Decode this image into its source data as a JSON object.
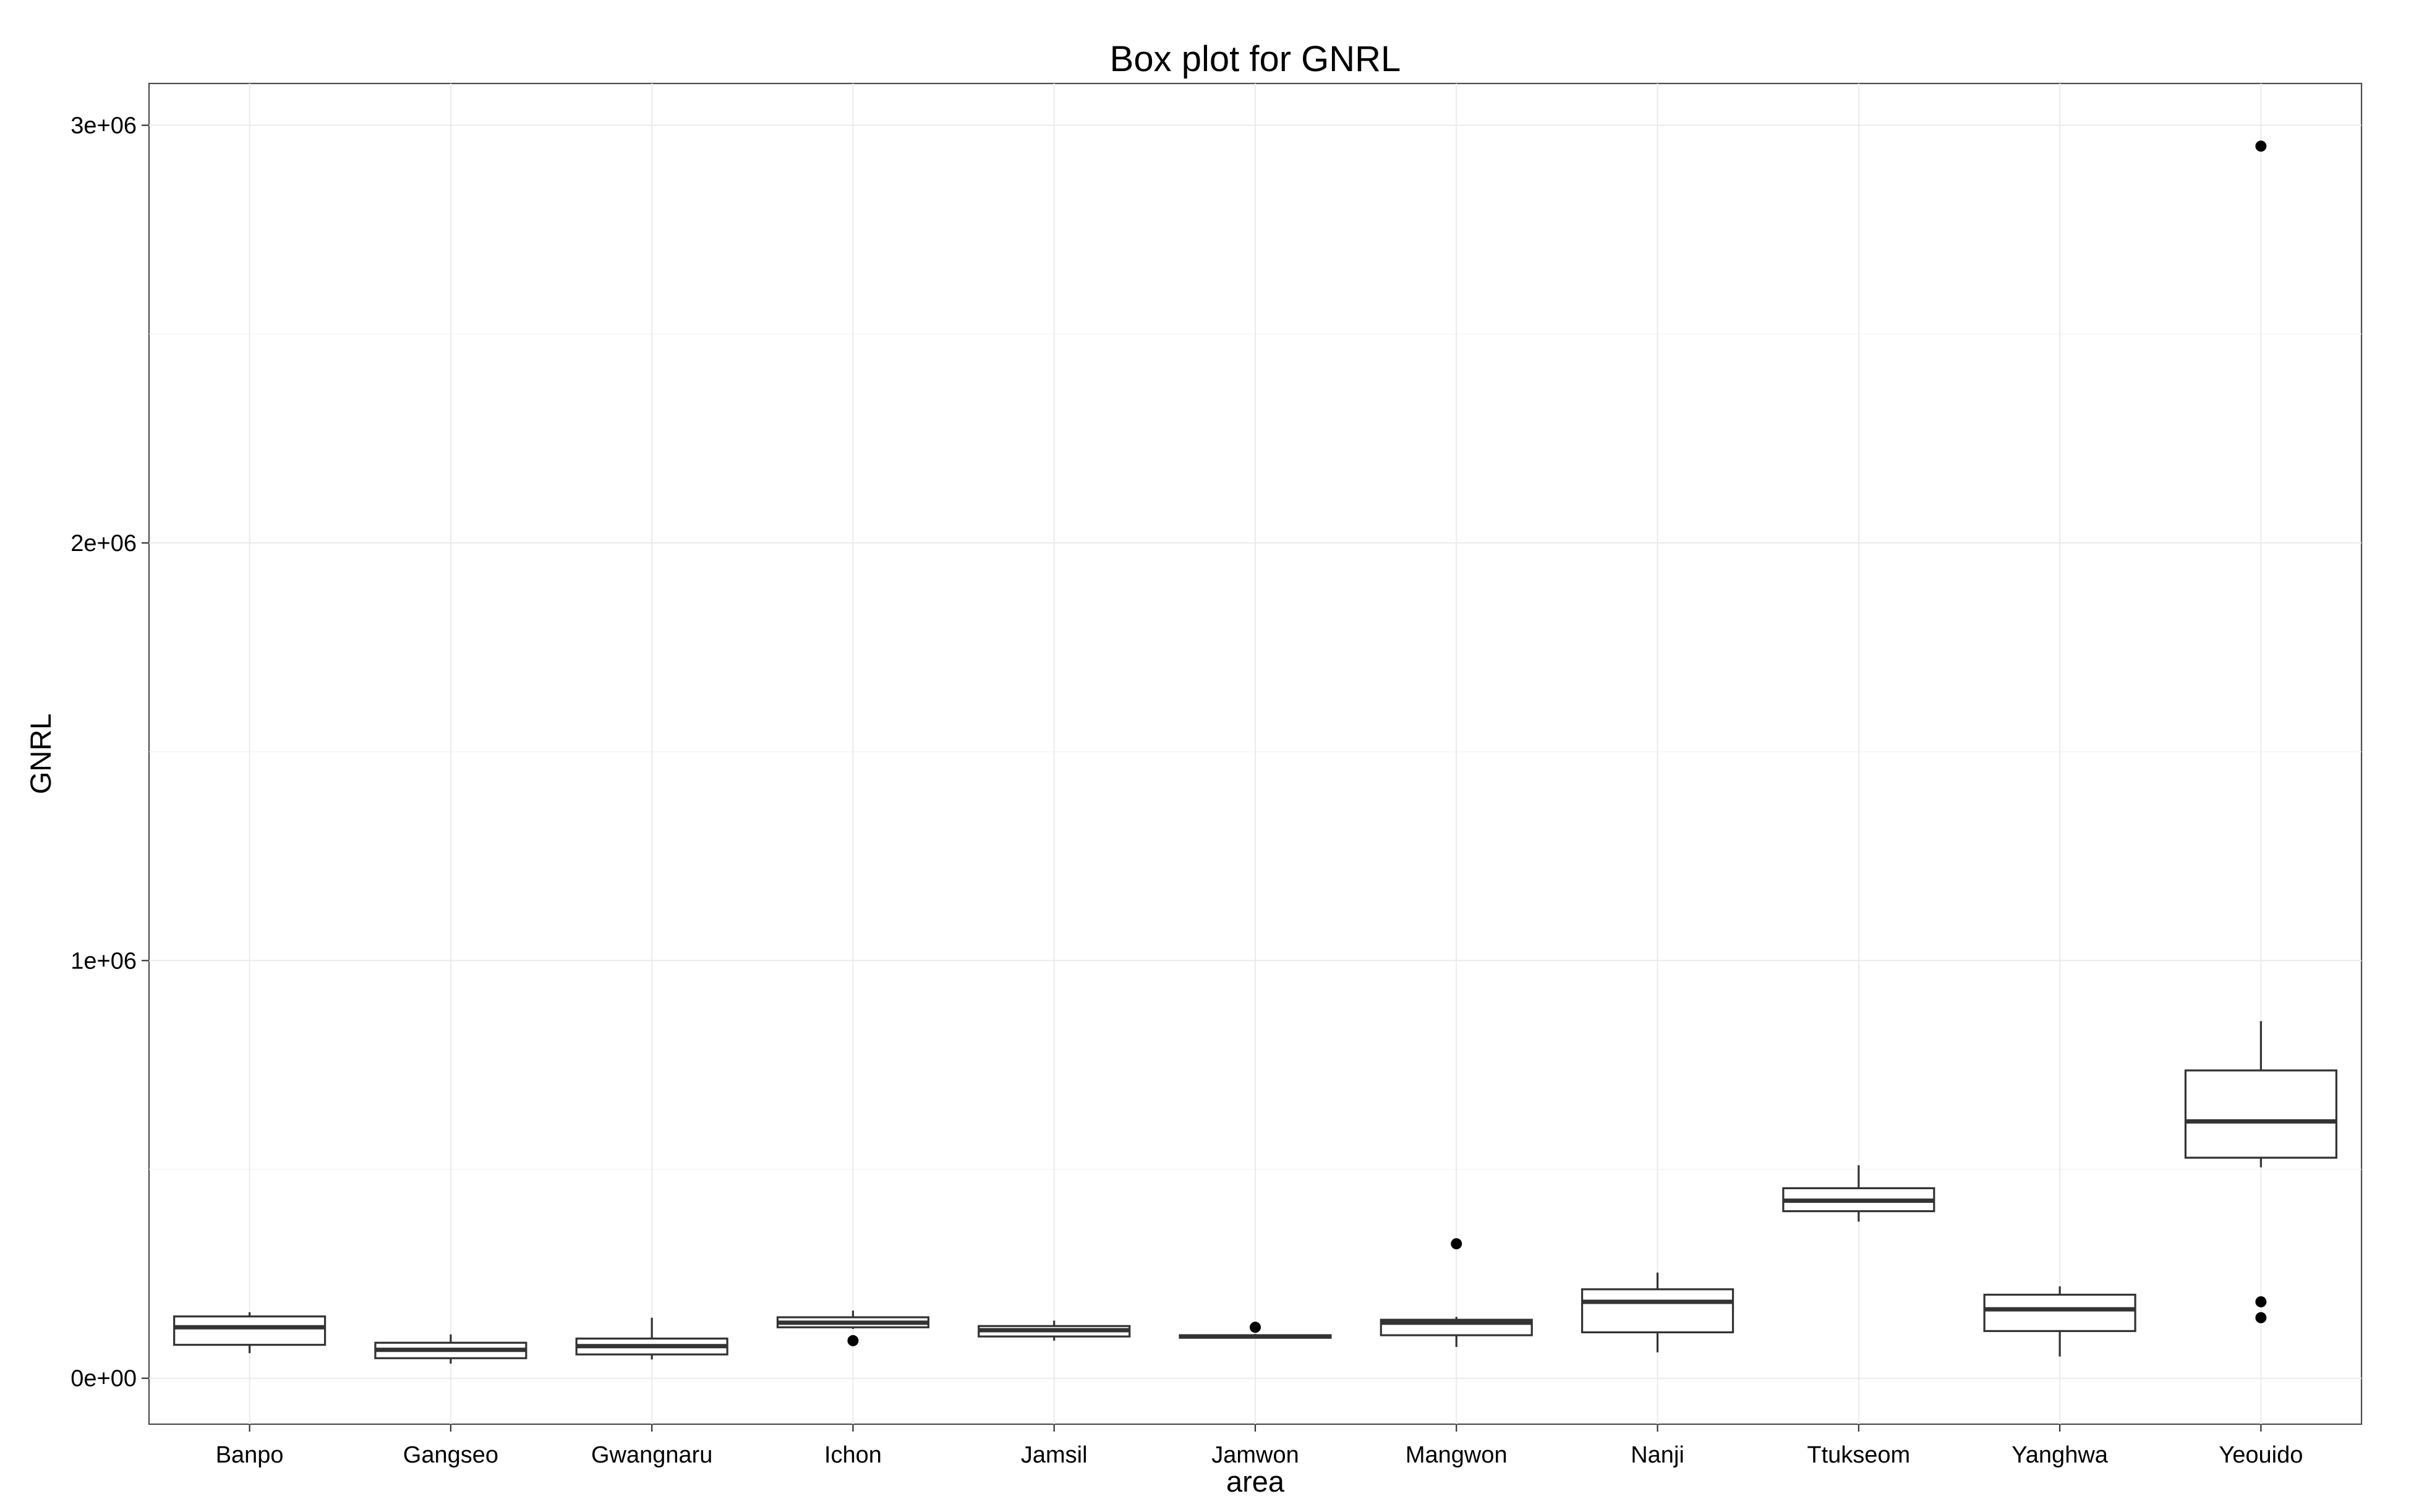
{
  "chart_data": {
    "type": "boxplot",
    "title": "Box plot for GNRL",
    "xlabel": "area",
    "ylabel": "GNRL",
    "ylim": [
      -110000,
      3100000
    ],
    "y_ticks": [
      {
        "value": 0,
        "label": "0e+00"
      },
      {
        "value": 1000000,
        "label": "1e+06"
      },
      {
        "value": 2000000,
        "label": "2e+06"
      },
      {
        "value": 3000000,
        "label": "3e+06"
      }
    ],
    "grid": true,
    "categories": [
      "Banpo",
      "Gangseo",
      "Gwangnaru",
      "Ichon",
      "Jamsil",
      "Jamwon",
      "Mangwon",
      "Nanji",
      "Ttukseom",
      "Yanghwa",
      "Yeouido"
    ],
    "boxes": [
      {
        "category": "Banpo",
        "whisker_low": 60000,
        "q1": 80000,
        "median": 122000,
        "q3": 148000,
        "whisker_high": 158000,
        "outliers": []
      },
      {
        "category": "Gangseo",
        "whisker_low": 35000,
        "q1": 48000,
        "median": 68000,
        "q3": 85000,
        "whisker_high": 105000,
        "outliers": []
      },
      {
        "category": "Gwangnaru",
        "whisker_low": 45000,
        "q1": 57000,
        "median": 77000,
        "q3": 95000,
        "whisker_high": 145000,
        "outliers": []
      },
      {
        "category": "Ichon",
        "whisker_low": 118000,
        "q1": 122000,
        "median": 133000,
        "q3": 146000,
        "whisker_high": 162000,
        "outliers": [
          90000
        ]
      },
      {
        "category": "Jamsil",
        "whisker_low": 90000,
        "q1": 100000,
        "median": 115000,
        "q3": 125000,
        "whisker_high": 138000,
        "outliers": []
      },
      {
        "category": "Jamwon",
        "whisker_low": 95000,
        "q1": 97000,
        "median": 100000,
        "q3": 103000,
        "whisker_high": 106000,
        "outliers": [
          122000
        ]
      },
      {
        "category": "Mangwon",
        "whisker_low": 75000,
        "q1": 103000,
        "median": 133000,
        "q3": 140000,
        "whisker_high": 147000,
        "outliers": [
          322000
        ]
      },
      {
        "category": "Nanji",
        "whisker_low": 62000,
        "q1": 110000,
        "median": 183000,
        "q3": 213000,
        "whisker_high": 253000,
        "outliers": []
      },
      {
        "category": "Ttukseom",
        "whisker_low": 375000,
        "q1": 400000,
        "median": 425000,
        "q3": 455000,
        "whisker_high": 510000,
        "outliers": []
      },
      {
        "category": "Yanghwa",
        "whisker_low": 52000,
        "q1": 113000,
        "median": 165000,
        "q3": 200000,
        "whisker_high": 220000,
        "outliers": []
      },
      {
        "category": "Yeouido",
        "whisker_low": 505000,
        "q1": 528000,
        "median": 615000,
        "q3": 737000,
        "whisker_high": 855000,
        "outliers": [
          2950000,
          183000,
          145000
        ]
      }
    ]
  }
}
